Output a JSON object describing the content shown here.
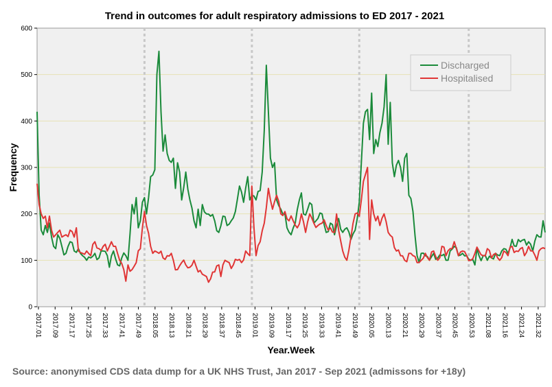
{
  "chart_data": {
    "type": "line",
    "title": "Trend in outcomes for adult respiratory admissions to ED 2017 - 2021",
    "xlabel": "Year.Week",
    "ylabel": "Frequency",
    "ylim": [
      0,
      600
    ],
    "yticks": [
      0,
      100,
      200,
      300,
      400,
      500,
      600
    ],
    "x_ticks": [
      "2017.01",
      "2017.09",
      "2017.17",
      "2017.25",
      "2017.33",
      "2017.41",
      "2017.49",
      "2018.05",
      "2018.13",
      "2018.21",
      "2018.29",
      "2018.37",
      "2018.45",
      "2019.01",
      "2019.09",
      "2019.17",
      "2019.25",
      "2019.33",
      "2019.41",
      "2019.49",
      "2020.05",
      "2020.13",
      "2020.21",
      "2020.29",
      "2020.37",
      "2020.45",
      "2020.53",
      "2021.08",
      "2021.16",
      "2021.24",
      "2021.32"
    ],
    "n_weeks": 247,
    "year_boundaries": [
      {
        "week": 52,
        "label": "2018.01"
      },
      {
        "week": 104,
        "label": "2019.01"
      },
      {
        "week": 156,
        "label": "2020.01"
      },
      {
        "week": 209,
        "label": "2021.01"
      }
    ],
    "grid": true,
    "legend_position": "top-right",
    "colors": {
      "discharged": "#1a8a3a",
      "hospitalised": "#e03535",
      "plot_bg": "#f0f0f0",
      "grid": "#e6e2b4",
      "boundary": "#c8c8c8"
    },
    "series": [
      {
        "name": "Discharged",
        "color": "#1a8a3a",
        "anchors": [
          [
            0,
            420
          ],
          [
            1,
            240
          ],
          [
            2,
            165
          ],
          [
            3,
            155
          ],
          [
            4,
            175
          ],
          [
            5,
            160
          ],
          [
            6,
            180
          ],
          [
            7,
            150
          ],
          [
            8,
            130
          ],
          [
            9,
            125
          ],
          [
            10,
            155
          ],
          [
            12,
            130
          ],
          [
            14,
            115
          ],
          [
            16,
            140
          ],
          [
            18,
            120
          ],
          [
            20,
            125
          ],
          [
            22,
            110
          ],
          [
            24,
            100
          ],
          [
            26,
            105
          ],
          [
            28,
            115
          ],
          [
            30,
            105
          ],
          [
            32,
            120
          ],
          [
            34,
            110
          ],
          [
            35,
            85
          ],
          [
            37,
            120
          ],
          [
            39,
            90
          ],
          [
            41,
            105
          ],
          [
            43,
            110
          ],
          [
            44,
            100
          ],
          [
            46,
            220
          ],
          [
            47,
            200
          ],
          [
            48,
            235
          ],
          [
            49,
            170
          ],
          [
            50,
            185
          ],
          [
            51,
            225
          ],
          [
            52,
            235
          ],
          [
            53,
            200
          ],
          [
            55,
            280
          ],
          [
            57,
            295
          ],
          [
            58,
            500
          ],
          [
            59,
            550
          ],
          [
            60,
            420
          ],
          [
            61,
            335
          ],
          [
            62,
            370
          ],
          [
            63,
            330
          ],
          [
            64,
            315
          ],
          [
            66,
            320
          ],
          [
            67,
            255
          ],
          [
            68,
            310
          ],
          [
            69,
            290
          ],
          [
            70,
            230
          ],
          [
            72,
            290
          ],
          [
            74,
            230
          ],
          [
            76,
            185
          ],
          [
            77,
            170
          ],
          [
            78,
            210
          ],
          [
            79,
            175
          ],
          [
            80,
            220
          ],
          [
            82,
            200
          ],
          [
            84,
            195
          ],
          [
            86,
            185
          ],
          [
            88,
            160
          ],
          [
            90,
            195
          ],
          [
            92,
            175
          ],
          [
            94,
            185
          ],
          [
            96,
            205
          ],
          [
            98,
            260
          ],
          [
            100,
            225
          ],
          [
            102,
            280
          ],
          [
            103,
            230
          ],
          [
            104,
            240
          ],
          [
            106,
            230
          ],
          [
            108,
            250
          ],
          [
            109,
            290
          ],
          [
            110,
            380
          ],
          [
            111,
            520
          ],
          [
            112,
            420
          ],
          [
            113,
            320
          ],
          [
            114,
            300
          ],
          [
            115,
            310
          ],
          [
            116,
            230
          ],
          [
            118,
            210
          ],
          [
            120,
            200
          ],
          [
            121,
            170
          ],
          [
            123,
            155
          ],
          [
            125,
            180
          ],
          [
            127,
            230
          ],
          [
            128,
            245
          ],
          [
            129,
            200
          ],
          [
            131,
            210
          ],
          [
            133,
            220
          ],
          [
            134,
            180
          ],
          [
            136,
            190
          ],
          [
            138,
            200
          ],
          [
            140,
            160
          ],
          [
            142,
            180
          ],
          [
            144,
            155
          ],
          [
            146,
            190
          ],
          [
            148,
            160
          ],
          [
            150,
            170
          ],
          [
            152,
            145
          ],
          [
            154,
            165
          ],
          [
            156,
            225
          ],
          [
            157,
            310
          ],
          [
            158,
            395
          ],
          [
            159,
            420
          ],
          [
            160,
            425
          ],
          [
            161,
            360
          ],
          [
            162,
            460
          ],
          [
            163,
            330
          ],
          [
            164,
            360
          ],
          [
            165,
            345
          ],
          [
            166,
            375
          ],
          [
            167,
            395
          ],
          [
            168,
            430
          ],
          [
            169,
            500
          ],
          [
            170,
            350
          ],
          [
            171,
            440
          ],
          [
            172,
            310
          ],
          [
            173,
            280
          ],
          [
            174,
            305
          ],
          [
            175,
            315
          ],
          [
            176,
            300
          ],
          [
            177,
            270
          ],
          [
            178,
            320
          ],
          [
            179,
            330
          ],
          [
            180,
            240
          ],
          [
            182,
            205
          ],
          [
            184,
            110
          ],
          [
            185,
            95
          ],
          [
            186,
            115
          ],
          [
            188,
            110
          ],
          [
            190,
            100
          ],
          [
            192,
            115
          ],
          [
            194,
            105
          ],
          [
            196,
            110
          ],
          [
            198,
            100
          ],
          [
            200,
            120
          ],
          [
            202,
            130
          ],
          [
            204,
            110
          ],
          [
            206,
            115
          ],
          [
            208,
            110
          ],
          [
            210,
            100
          ],
          [
            212,
            90
          ],
          [
            213,
            125
          ],
          [
            214,
            110
          ],
          [
            216,
            110
          ],
          [
            218,
            100
          ],
          [
            220,
            105
          ],
          [
            222,
            115
          ],
          [
            224,
            110
          ],
          [
            226,
            125
          ],
          [
            228,
            115
          ],
          [
            230,
            145
          ],
          [
            232,
            130
          ],
          [
            234,
            140
          ],
          [
            236,
            145
          ],
          [
            238,
            140
          ],
          [
            240,
            120
          ],
          [
            242,
            155
          ],
          [
            244,
            150
          ],
          [
            245,
            185
          ],
          [
            246,
            160
          ]
        ]
      },
      {
        "name": "Hospitalised",
        "color": "#e03535",
        "anchors": [
          [
            0,
            265
          ],
          [
            1,
            220
          ],
          [
            2,
            200
          ],
          [
            3,
            190
          ],
          [
            4,
            195
          ],
          [
            5,
            170
          ],
          [
            6,
            195
          ],
          [
            7,
            165
          ],
          [
            8,
            150
          ],
          [
            9,
            155
          ],
          [
            10,
            160
          ],
          [
            11,
            165
          ],
          [
            12,
            150
          ],
          [
            14,
            155
          ],
          [
            16,
            165
          ],
          [
            18,
            150
          ],
          [
            19,
            170
          ],
          [
            20,
            120
          ],
          [
            22,
            115
          ],
          [
            24,
            120
          ],
          [
            26,
            110
          ],
          [
            28,
            140
          ],
          [
            30,
            125
          ],
          [
            32,
            130
          ],
          [
            34,
            120
          ],
          [
            36,
            140
          ],
          [
            38,
            130
          ],
          [
            40,
            100
          ],
          [
            42,
            80
          ],
          [
            43,
            55
          ],
          [
            44,
            90
          ],
          [
            46,
            80
          ],
          [
            48,
            95
          ],
          [
            50,
            125
          ],
          [
            51,
            170
          ],
          [
            52,
            205
          ],
          [
            53,
            175
          ],
          [
            55,
            130
          ],
          [
            57,
            120
          ],
          [
            59,
            115
          ],
          [
            61,
            105
          ],
          [
            63,
            110
          ],
          [
            65,
            115
          ],
          [
            66,
            100
          ],
          [
            68,
            80
          ],
          [
            70,
            95
          ],
          [
            72,
            90
          ],
          [
            74,
            85
          ],
          [
            76,
            100
          ],
          [
            78,
            75
          ],
          [
            80,
            70
          ],
          [
            82,
            65
          ],
          [
            84,
            60
          ],
          [
            86,
            75
          ],
          [
            88,
            90
          ],
          [
            89,
            65
          ],
          [
            91,
            100
          ],
          [
            93,
            95
          ],
          [
            95,
            90
          ],
          [
            97,
            100
          ],
          [
            99,
            95
          ],
          [
            101,
            120
          ],
          [
            103,
            110
          ],
          [
            104,
            260
          ],
          [
            105,
            170
          ],
          [
            106,
            110
          ],
          [
            108,
            140
          ],
          [
            110,
            180
          ],
          [
            112,
            255
          ],
          [
            114,
            210
          ],
          [
            116,
            240
          ],
          [
            118,
            200
          ],
          [
            120,
            205
          ],
          [
            122,
            185
          ],
          [
            124,
            185
          ],
          [
            126,
            170
          ],
          [
            128,
            200
          ],
          [
            130,
            160
          ],
          [
            132,
            200
          ],
          [
            134,
            180
          ],
          [
            136,
            175
          ],
          [
            138,
            180
          ],
          [
            140,
            175
          ],
          [
            142,
            170
          ],
          [
            144,
            160
          ],
          [
            145,
            200
          ],
          [
            146,
            165
          ],
          [
            148,
            120
          ],
          [
            150,
            100
          ],
          [
            152,
            150
          ],
          [
            154,
            200
          ],
          [
            156,
            195
          ],
          [
            157,
            230
          ],
          [
            158,
            270
          ],
          [
            159,
            285
          ],
          [
            160,
            300
          ],
          [
            161,
            145
          ],
          [
            162,
            230
          ],
          [
            163,
            200
          ],
          [
            164,
            185
          ],
          [
            165,
            195
          ],
          [
            166,
            175
          ],
          [
            168,
            200
          ],
          [
            170,
            160
          ],
          [
            172,
            150
          ],
          [
            174,
            120
          ],
          [
            176,
            110
          ],
          [
            178,
            100
          ],
          [
            180,
            115
          ],
          [
            182,
            110
          ],
          [
            184,
            95
          ],
          [
            186,
            100
          ],
          [
            188,
            115
          ],
          [
            190,
            100
          ],
          [
            192,
            120
          ],
          [
            194,
            100
          ],
          [
            196,
            130
          ],
          [
            198,
            110
          ],
          [
            200,
            125
          ],
          [
            202,
            140
          ],
          [
            204,
            110
          ],
          [
            206,
            120
          ],
          [
            208,
            110
          ],
          [
            210,
            100
          ],
          [
            212,
            115
          ],
          [
            214,
            120
          ],
          [
            216,
            110
          ],
          [
            218,
            125
          ],
          [
            220,
            105
          ],
          [
            222,
            115
          ],
          [
            224,
            100
          ],
          [
            226,
            120
          ],
          [
            228,
            110
          ],
          [
            230,
            130
          ],
          [
            232,
            120
          ],
          [
            234,
            125
          ],
          [
            236,
            110
          ],
          [
            238,
            130
          ],
          [
            240,
            120
          ],
          [
            242,
            100
          ],
          [
            243,
            120
          ],
          [
            244,
            125
          ],
          [
            246,
            125
          ]
        ]
      }
    ]
  },
  "source_note": "Source: anonymised CDS data dump for a UK NHS Trust, Jan 2017 - Sep 2021 (admissons for +18y)"
}
